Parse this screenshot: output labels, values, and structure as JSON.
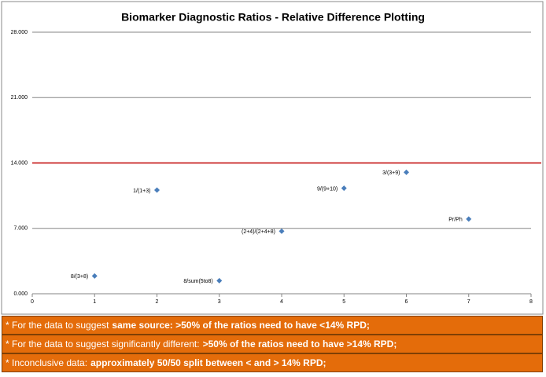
{
  "chart_data": {
    "type": "scatter",
    "title": "Biomarker Diagnostic Ratios  - Relative Difference Plotting",
    "x": [
      1,
      2,
      3,
      4,
      5,
      6,
      7
    ],
    "values": [
      1.9,
      11.1,
      1.4,
      6.7,
      11.3,
      13.0,
      8.0
    ],
    "point_labels": [
      "8/(3+8)",
      "1/(1+3)",
      "8/sum(5to8)",
      "(2+4)/(2+4+8)",
      "9/(9+10)",
      "3/(3+9)",
      "Pr/Ph"
    ],
    "color": "#4a7ebb",
    "xlim": [
      0,
      8
    ],
    "xticks": [
      0,
      1,
      2,
      3,
      4,
      5,
      6,
      7,
      8
    ],
    "ylim": [
      0,
      28
    ],
    "yticks": [
      {
        "value": 0,
        "label": "0.000"
      },
      {
        "value": 7,
        "label": "7.000"
      },
      {
        "value": 14,
        "label": "14.000"
      },
      {
        "value": 21,
        "label": "21.000"
      },
      {
        "value": 28,
        "label": "28.000"
      }
    ],
    "grid": true,
    "threshold": 14,
    "threshold_color": "#c00000"
  },
  "notes": [
    [
      {
        "text": "* For the data to suggest",
        "bold": false
      },
      {
        "text": "same source: >50% of the ratios need to have <14% RPD;",
        "bold": true
      }
    ],
    [
      {
        "text": "* For the data to suggest significantly different:",
        "bold": false
      },
      {
        "text": ">50% of the ratios need to have >14% RPD;",
        "bold": true
      }
    ],
    [
      {
        "text": "* Inconclusive data:",
        "bold": false
      },
      {
        "text": "approximately 50/50 split between < and > 14% RPD;",
        "bold": true
      }
    ]
  ]
}
